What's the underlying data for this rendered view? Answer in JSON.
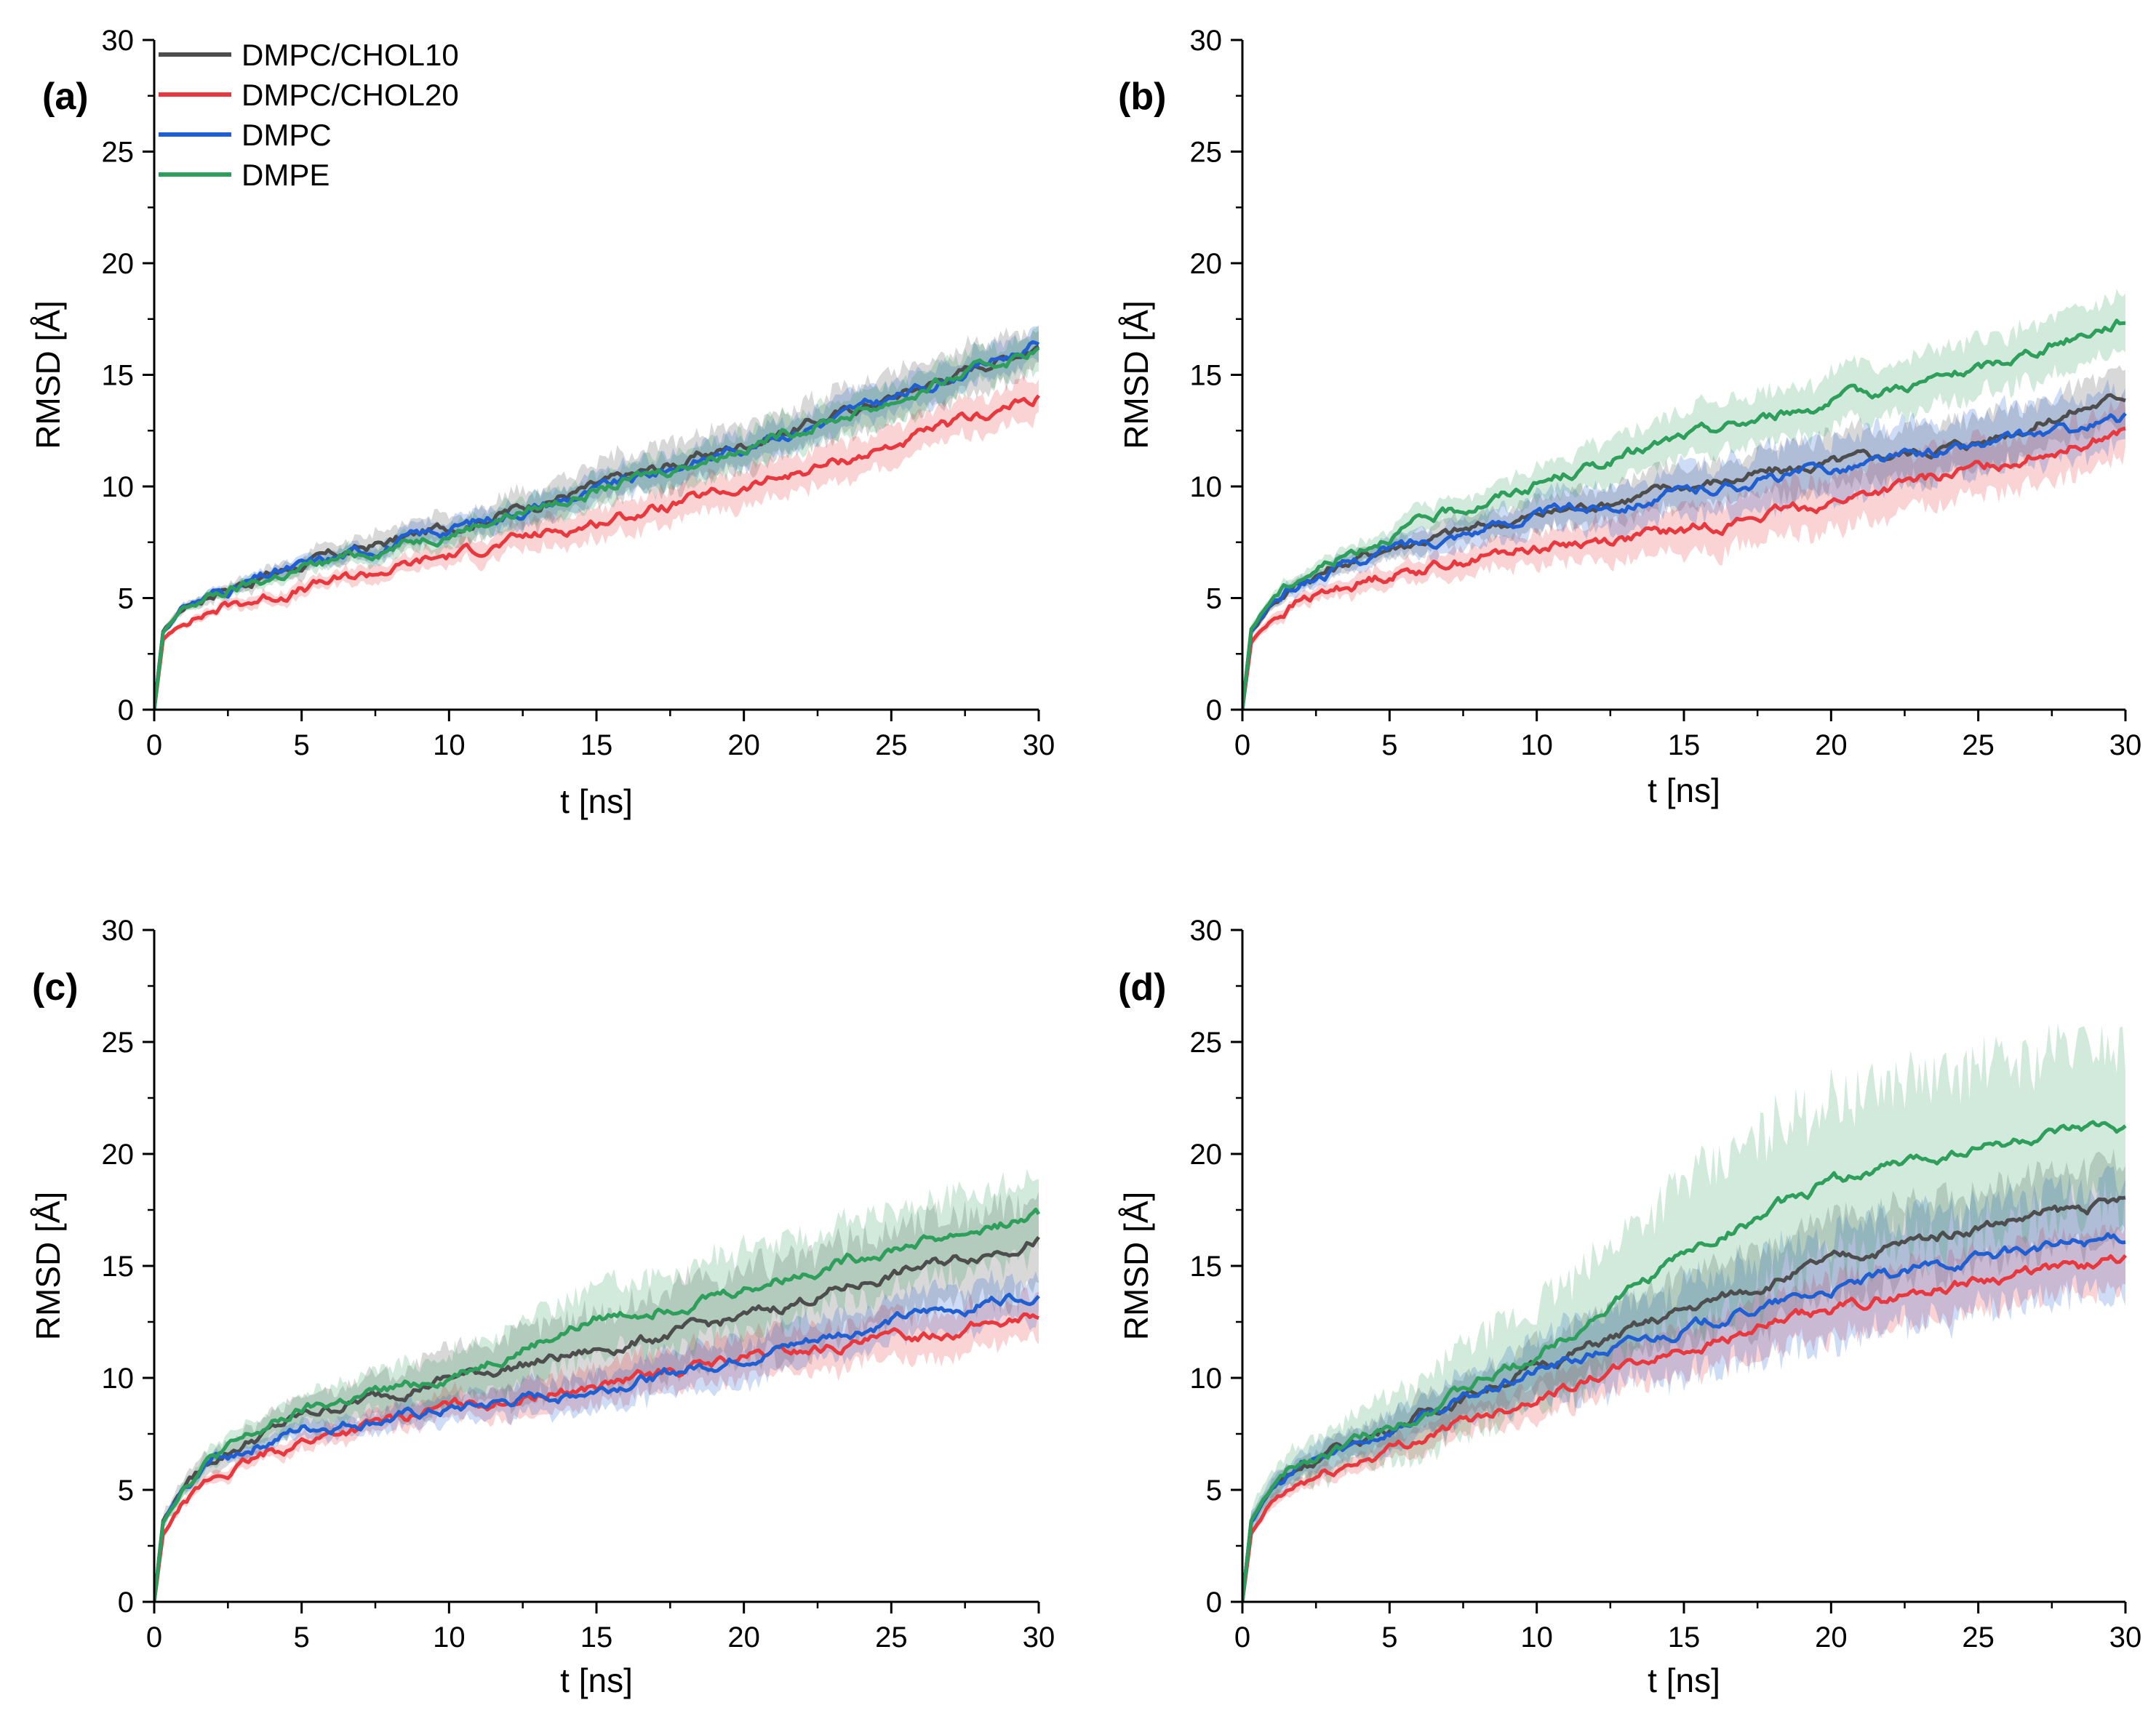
{
  "colors": {
    "DMPC/CHOL10": "#4d4d4d",
    "DMPC/CHOL20": "#e8383d",
    "DMPC": "#1f5fd1",
    "DMPE": "#2e9e5b"
  },
  "chart_data": [
    {
      "type": "line",
      "panel": "(a)",
      "xlabel": "t [ns]",
      "ylabel": "RMSD [Å]",
      "xlim": [
        0,
        30
      ],
      "ylim": [
        0,
        30
      ],
      "x_ticks": [
        "0",
        "5",
        "10",
        "15",
        "20",
        "25",
        "30"
      ],
      "y_ticks": [
        "0",
        "5",
        "10",
        "15",
        "20",
        "25",
        "30"
      ],
      "legend": [
        "DMPC/CHOL10",
        "DMPC/CHOL20",
        "DMPC",
        "DMPE"
      ],
      "legend_position": "top-left",
      "x": [
        0,
        0.3,
        1,
        2,
        5,
        10,
        15,
        20,
        25,
        30
      ],
      "series": [
        {
          "name": "DMPC/CHOL10",
          "values": [
            0,
            3.5,
            4.6,
            5.3,
            6.5,
            8.2,
            10.0,
            11.9,
            14.0,
            16.4
          ],
          "band": 1.3
        },
        {
          "name": "DMPC/CHOL20",
          "values": [
            0,
            3.1,
            4.0,
            4.5,
            5.4,
            6.9,
            8.4,
            9.9,
            11.8,
            14.0
          ],
          "band": 1.0
        },
        {
          "name": "DMPC",
          "values": [
            0,
            3.5,
            4.6,
            5.2,
            6.4,
            8.1,
            9.8,
            11.8,
            13.9,
            16.4
          ],
          "band": 0.9
        },
        {
          "name": "DMPE",
          "values": [
            0,
            3.4,
            4.5,
            5.1,
            6.3,
            8.0,
            9.8,
            11.8,
            13.8,
            16.2
          ],
          "band": 1.0
        }
      ]
    },
    {
      "type": "line",
      "panel": "(b)",
      "xlabel": "t [ns]",
      "ylabel": "RMSD [Å]",
      "xlim": [
        0,
        30
      ],
      "ylim": [
        0,
        30
      ],
      "x_ticks": [
        "0",
        "5",
        "10",
        "15",
        "20",
        "25",
        "30"
      ],
      "y_ticks": [
        "0",
        "5",
        "10",
        "15",
        "20",
        "25",
        "30"
      ],
      "x": [
        0,
        0.3,
        1,
        2,
        5,
        10,
        15,
        20,
        25,
        30
      ],
      "series": [
        {
          "name": "DMPC/CHOL10",
          "values": [
            0,
            3.5,
            4.8,
            5.8,
            7.3,
            8.7,
            10.0,
            11.0,
            12.0,
            14.1
          ],
          "band": 1.4
        },
        {
          "name": "DMPC/CHOL20",
          "values": [
            0,
            3.0,
            4.1,
            4.9,
            6.1,
            7.3,
            8.0,
            9.3,
            10.8,
            12.5
          ],
          "band": 1.5
        },
        {
          "name": "DMPC",
          "values": [
            0,
            3.5,
            4.8,
            5.7,
            7.2,
            8.7,
            9.7,
            10.8,
            11.8,
            13.0
          ],
          "band": 1.6
        },
        {
          "name": "DMPE",
          "values": [
            0,
            3.6,
            5.0,
            6.0,
            7.9,
            10.1,
            12.2,
            13.8,
            15.2,
            17.5
          ],
          "band": 1.5
        }
      ]
    },
    {
      "type": "line",
      "panel": "(c)",
      "xlabel": "t [ns]",
      "ylabel": "RMSD [Å]",
      "xlim": [
        0,
        30
      ],
      "ylim": [
        0,
        30
      ],
      "x_ticks": [
        "0",
        "5",
        "10",
        "15",
        "20",
        "25",
        "30"
      ],
      "y_ticks": [
        "0",
        "5",
        "10",
        "15",
        "20",
        "25",
        "30"
      ],
      "x": [
        0,
        0.3,
        1,
        2,
        5,
        10,
        15,
        20,
        25,
        30
      ],
      "series": [
        {
          "name": "DMPC/CHOL10",
          "values": [
            0,
            3.6,
            5.2,
            6.4,
            8.3,
            10.0,
            11.2,
            12.7,
            14.6,
            16.2
          ],
          "band": 2.5
        },
        {
          "name": "DMPC/CHOL20",
          "values": [
            0,
            3.0,
            4.4,
            5.5,
            7.2,
            8.7,
            9.6,
            10.9,
            11.7,
            12.8
          ],
          "band": 1.2
        },
        {
          "name": "DMPC",
          "values": [
            0,
            3.5,
            5.0,
            6.3,
            7.7,
            8.5,
            9.5,
            10.9,
            12.5,
            13.9
          ],
          "band": 1.2
        },
        {
          "name": "DMPE",
          "values": [
            0,
            3.6,
            5.2,
            6.5,
            8.5,
            10.1,
            12.6,
            14.0,
            15.8,
            17.2
          ],
          "band": 2.2
        }
      ]
    },
    {
      "type": "line",
      "panel": "(d)",
      "xlabel": "t [ns]",
      "ylabel": "RMSD [Å]",
      "xlim": [
        0,
        30
      ],
      "ylim": [
        0,
        30
      ],
      "x_ticks": [
        "0",
        "5",
        "10",
        "15",
        "20",
        "25",
        "30"
      ],
      "y_ticks": [
        "0",
        "5",
        "10",
        "15",
        "20",
        "25",
        "30"
      ],
      "x": [
        0,
        0.3,
        1,
        2,
        5,
        10,
        15,
        20,
        25,
        30
      ],
      "series": [
        {
          "name": "DMPC/CHOL10",
          "values": [
            0,
            3.6,
            5.1,
            6.1,
            7.8,
            10.5,
            13.0,
            15.2,
            16.8,
            17.9
          ],
          "band": 2.2
        },
        {
          "name": "DMPC/CHOL20",
          "values": [
            0,
            3.0,
            4.4,
            5.3,
            6.8,
            9.2,
            11.3,
            13.0,
            14.4,
            15.2
          ],
          "band": 1.6
        },
        {
          "name": "DMPC",
          "values": [
            0,
            3.6,
            5.0,
            6.0,
            7.7,
            10.3,
            12.2,
            13.9,
            15.4,
            16.3
          ],
          "band": 2.9
        },
        {
          "name": "DMPE",
          "values": [
            0,
            3.6,
            5.1,
            6.2,
            7.8,
            11.0,
            15.5,
            18.8,
            20.3,
            21.2
          ],
          "band": 4.5
        }
      ]
    }
  ]
}
